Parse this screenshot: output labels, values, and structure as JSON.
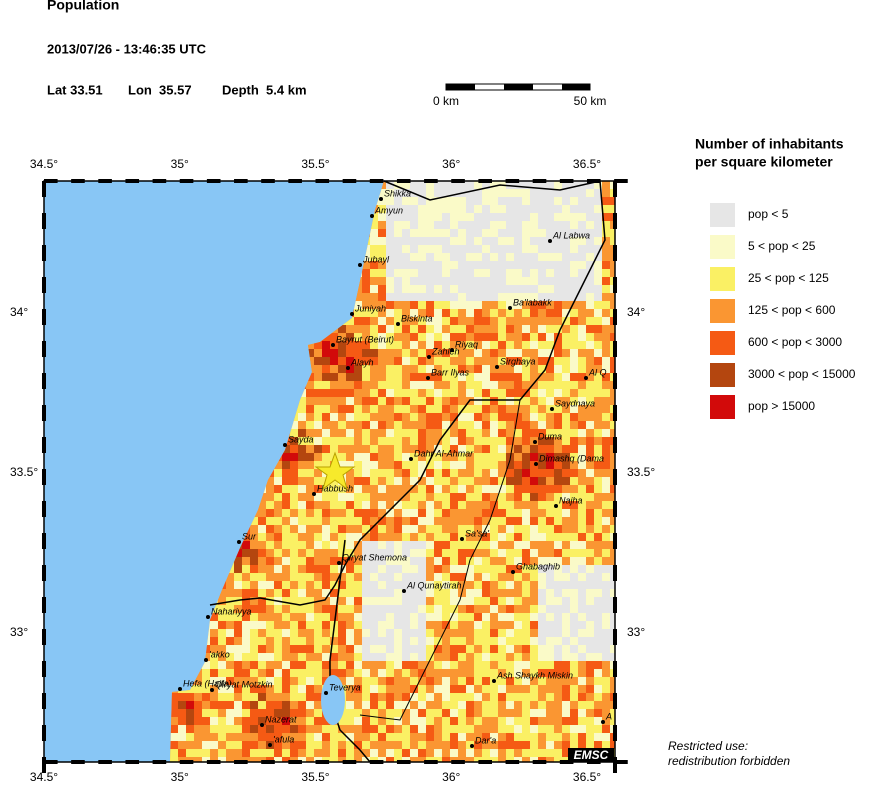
{
  "header": {
    "title": "Population",
    "datetime": "2013/07/26 - 13:46:35 UTC",
    "lat": "Lat 33.51",
    "lon": "Lon  35.57",
    "depth": "Depth  5.4 km"
  },
  "scale_bar": {
    "start": "0 km",
    "end": "50 km"
  },
  "map": {
    "lon_labels": [
      "34.5°",
      "35°",
      "35.5°",
      "36°",
      "36.5°"
    ],
    "lat_labels": [
      "34°",
      "33.5°",
      "33°"
    ],
    "sea_color": "#88c6f5",
    "epicenter_color": "#f7ea2b",
    "cities": [
      "Shikka",
      "Amyun",
      "Jubayl",
      "Al Labwa",
      "Ba'labakk",
      "Juniyah",
      "Biskinta",
      "Bayrut (Beirut)",
      "Zahleh",
      "Riyaq",
      "Sirghaya",
      "Alayh",
      "Barr Ilyas",
      "Al Q",
      "Saydnaya",
      "Sayda",
      "Duma",
      "Dahr Al-Ahmar",
      "Dimashq (Dama",
      "Habbush",
      "Najha",
      "Sur",
      "Sa'sa'",
      "Qiryat Shemona",
      "Ghabaghib",
      "Al Qunaytirah",
      "Nahariyya",
      "'akko",
      "Hefa (Haifa)",
      "Qiryat Motzkin",
      "Teverya",
      "Ash Shaykh Miskin",
      "Nazerat",
      "'afula",
      "Dar'a",
      "A"
    ],
    "watermark": "EMSC"
  },
  "legend": {
    "title": [
      "Number of inhabitants",
      "per square kilometer"
    ],
    "entries": [
      {
        "label": "pop < 5",
        "color": "#e6e6e6"
      },
      {
        "label": "5 < pop < 25",
        "color": "#fafac8"
      },
      {
        "label": "25 < pop < 125",
        "color": "#faf064"
      },
      {
        "label": "125 < pop < 600",
        "color": "#fa9632"
      },
      {
        "label": "600 < pop < 3000",
        "color": "#f55a14"
      },
      {
        "label": "3000 < pop < 15000",
        "color": "#b4460f"
      },
      {
        "label": "pop > 15000",
        "color": "#d20a0a"
      }
    ]
  },
  "footer": {
    "notice": [
      "Restricted use:",
      "redistribution forbidden"
    ]
  }
}
